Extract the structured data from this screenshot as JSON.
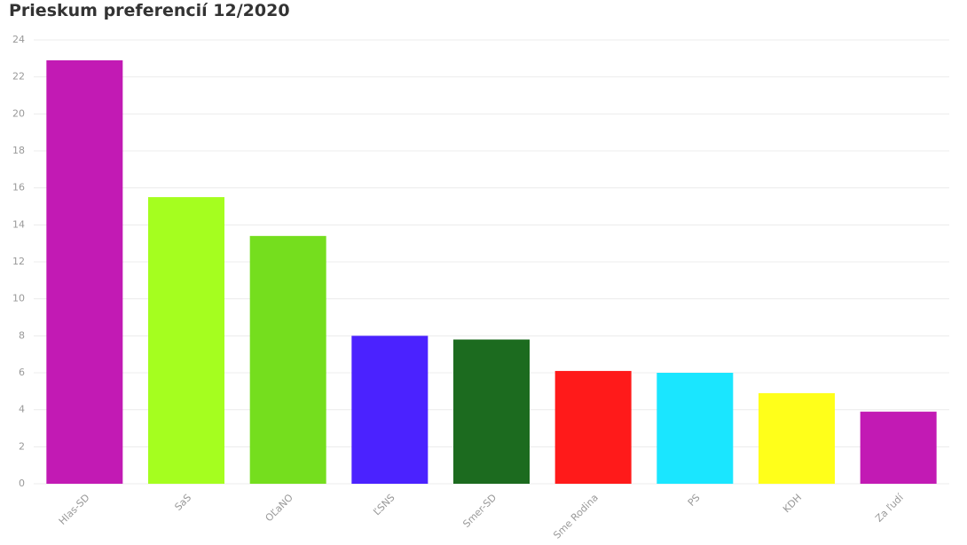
{
  "chart_data": {
    "type": "bar",
    "title": "Prieskum preferencií 12/2020",
    "categories": [
      "Hlas-SD",
      "SaS",
      "OĽaNO",
      "ĽSNS",
      "Smer-SD",
      "Sme Rodina",
      "PS",
      "KDH",
      "Za ľudí"
    ],
    "values": [
      22.9,
      15.5,
      13.4,
      8.0,
      7.8,
      6.1,
      6.0,
      4.9,
      3.9
    ],
    "colors": [
      "#c21ab4",
      "#a5fe1f",
      "#75de1e",
      "#4b22ff",
      "#1c6b1f",
      "#ff1a1a",
      "#1ae6ff",
      "#ffff1a",
      "#c21ab4"
    ],
    "ylim": [
      0,
      24
    ],
    "yticks": [
      0,
      2,
      4,
      6,
      8,
      10,
      12,
      14,
      16,
      18,
      20,
      22,
      24
    ],
    "grid": true
  }
}
